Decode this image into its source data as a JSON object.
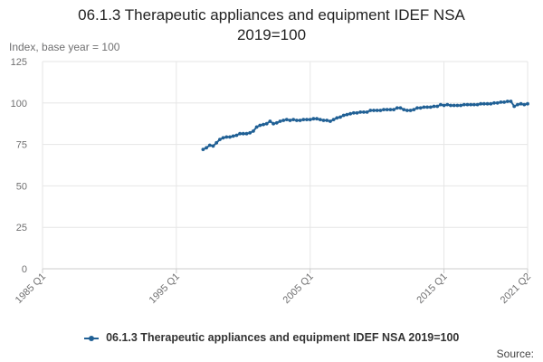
{
  "chart_data": {
    "type": "line",
    "title_line1": "06.1.3 Therapeutic appliances and equipment IDEF NSA",
    "title_line2": "2019=100",
    "y_unit_label": "Index, base year = 100",
    "source_label": "Source:",
    "xlabel": "",
    "ylabel": "",
    "ylim": [
      0,
      125
    ],
    "y_ticks": [
      "0",
      "25",
      "50",
      "75",
      "100",
      "125"
    ],
    "x_domain": [
      "1985 Q1",
      "2021 Q2"
    ],
    "x_ticks": [
      "1985 Q1",
      "1995 Q1",
      "2005 Q1",
      "2015 Q1",
      "2021 Q2"
    ],
    "grid": true,
    "legend_position": "bottom",
    "colors": {
      "series": "#206095",
      "grid": "#e6e6e6",
      "axis": "#cccccc"
    },
    "series": [
      {
        "name": "06.1.3 Therapeutic appliances and equipment IDEF NSA 2019=100",
        "x": [
          "1997 Q1",
          "1997 Q2",
          "1997 Q3",
          "1997 Q4",
          "1998 Q1",
          "1998 Q2",
          "1998 Q3",
          "1998 Q4",
          "1999 Q1",
          "1999 Q2",
          "1999 Q3",
          "1999 Q4",
          "2000 Q1",
          "2000 Q2",
          "2000 Q3",
          "2000 Q4",
          "2001 Q1",
          "2001 Q2",
          "2001 Q3",
          "2001 Q4",
          "2002 Q1",
          "2002 Q2",
          "2002 Q3",
          "2002 Q4",
          "2003 Q1",
          "2003 Q2",
          "2003 Q3",
          "2003 Q4",
          "2004 Q1",
          "2004 Q2",
          "2004 Q3",
          "2004 Q4",
          "2005 Q1",
          "2005 Q2",
          "2005 Q3",
          "2005 Q4",
          "2006 Q1",
          "2006 Q2",
          "2006 Q3",
          "2006 Q4",
          "2007 Q1",
          "2007 Q2",
          "2007 Q3",
          "2007 Q4",
          "2008 Q1",
          "2008 Q2",
          "2008 Q3",
          "2008 Q4",
          "2009 Q1",
          "2009 Q2",
          "2009 Q3",
          "2009 Q4",
          "2010 Q1",
          "2010 Q2",
          "2010 Q3",
          "2010 Q4",
          "2011 Q1",
          "2011 Q2",
          "2011 Q3",
          "2011 Q4",
          "2012 Q1",
          "2012 Q2",
          "2012 Q3",
          "2012 Q4",
          "2013 Q1",
          "2013 Q2",
          "2013 Q3",
          "2013 Q4",
          "2014 Q1",
          "2014 Q2",
          "2014 Q3",
          "2014 Q4",
          "2015 Q1",
          "2015 Q2",
          "2015 Q3",
          "2015 Q4",
          "2016 Q1",
          "2016 Q2",
          "2016 Q3",
          "2016 Q4",
          "2017 Q1",
          "2017 Q2",
          "2017 Q3",
          "2017 Q4",
          "2018 Q1",
          "2018 Q2",
          "2018 Q3",
          "2018 Q4",
          "2019 Q1",
          "2019 Q2",
          "2019 Q3",
          "2019 Q4",
          "2020 Q1",
          "2020 Q2",
          "2020 Q3",
          "2020 Q4",
          "2021 Q1",
          "2021 Q2"
        ],
        "values": [
          72,
          73,
          74.5,
          74,
          76,
          78,
          79,
          79.5,
          79.5,
          80,
          80.5,
          81.5,
          81.5,
          81.5,
          82,
          83,
          85.5,
          86.5,
          87,
          87.5,
          89,
          87.5,
          88,
          89,
          89.5,
          90,
          89.5,
          90,
          89.5,
          89.5,
          90,
          90,
          90,
          90.5,
          90.5,
          90,
          89.5,
          89.5,
          89,
          90,
          91,
          91.5,
          92.5,
          93,
          93.5,
          94,
          94,
          94.5,
          94.5,
          94.5,
          95.5,
          95.5,
          95.5,
          95.5,
          96,
          96,
          96,
          96,
          97,
          97,
          96,
          95.5,
          95.5,
          96,
          97,
          97,
          97.5,
          97.5,
          97.5,
          98,
          98,
          99,
          98.5,
          99,
          98.5,
          98.5,
          98.5,
          98.5,
          99,
          99,
          99,
          99,
          99,
          99.5,
          99.5,
          99.5,
          99.5,
          100,
          100,
          100.5,
          100.5,
          101,
          101,
          98,
          99,
          99.5,
          99,
          99.5
        ]
      }
    ]
  }
}
